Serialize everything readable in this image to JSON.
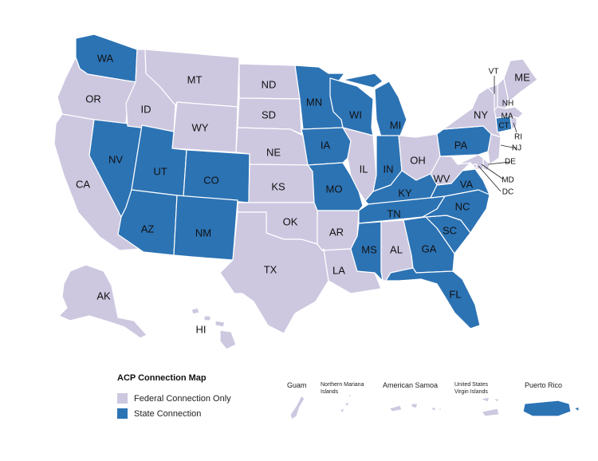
{
  "colors": {
    "federal": "#cdc8e0",
    "state": "#2c73b4",
    "stroke": "#ffffff",
    "text": "#111111"
  },
  "legend": {
    "title": "ACP Connection Map",
    "items": [
      {
        "label": "Federal Connection Only",
        "category": "federal"
      },
      {
        "label": "State Connection",
        "category": "state"
      }
    ]
  },
  "states": {
    "WA": "state",
    "OR": "federal",
    "CA": "federal",
    "NV": "state",
    "ID": "federal",
    "MT": "federal",
    "WY": "federal",
    "UT": "state",
    "AZ": "state",
    "CO": "state",
    "NM": "state",
    "ND": "federal",
    "SD": "federal",
    "NE": "federal",
    "KS": "federal",
    "OK": "federal",
    "TX": "federal",
    "MN": "state",
    "IA": "state",
    "MO": "state",
    "AR": "federal",
    "LA": "federal",
    "WI": "state",
    "IL": "federal",
    "MS": "state",
    "MI": "state",
    "IN": "state",
    "KY": "state",
    "TN": "state",
    "AL": "federal",
    "OH": "federal",
    "GA": "state",
    "FL": "state",
    "SC": "state",
    "NC": "state",
    "VA": "state",
    "WV": "federal",
    "PA": "state",
    "NY": "federal",
    "VT": "federal",
    "NH": "federal",
    "ME": "federal",
    "MA": "federal",
    "RI": "federal",
    "CT": "state",
    "NJ": "federal",
    "DE": "federal",
    "MD": "federal",
    "DC": "federal",
    "AK": "federal",
    "HI": "federal"
  },
  "state_labels": {
    "WA": "WA",
    "OR": "OR",
    "CA": "CA",
    "NV": "NV",
    "ID": "ID",
    "MT": "MT",
    "WY": "WY",
    "UT": "UT",
    "AZ": "AZ",
    "CO": "CO",
    "NM": "NM",
    "ND": "ND",
    "SD": "SD",
    "NE": "NE",
    "KS": "KS",
    "OK": "OK",
    "TX": "TX",
    "MN": "MN",
    "IA": "IA",
    "MO": "MO",
    "AR": "AR",
    "LA": "LA",
    "WI": "WI",
    "IL": "IL",
    "MS": "MS",
    "MI": "MI",
    "IN": "IN",
    "KY": "KY",
    "TN": "TN",
    "AL": "AL",
    "OH": "OH",
    "GA": "GA",
    "FL": "FL",
    "SC": "SC",
    "NC": "NC",
    "VA": "VA",
    "WV": "WV",
    "PA": "PA",
    "NY": "NY",
    "VT": "VT",
    "NH": "NH",
    "ME": "ME",
    "MA": "MA",
    "RI": "RI",
    "CT": "CT",
    "NJ": "NJ",
    "DE": "DE",
    "MD": "MD",
    "DC": "DC",
    "AK": "AK",
    "HI": "HI"
  },
  "territories": [
    {
      "id": "guam",
      "label": "Guam",
      "category": "federal"
    },
    {
      "id": "nmi",
      "label": "Northern Mariana Islands",
      "category": "federal"
    },
    {
      "id": "as",
      "label": "American Samoa",
      "category": "federal"
    },
    {
      "id": "usvi",
      "label": "United States Virgin Islands",
      "category": "federal"
    },
    {
      "id": "pr",
      "label": "Puerto Rico",
      "category": "state"
    }
  ]
}
